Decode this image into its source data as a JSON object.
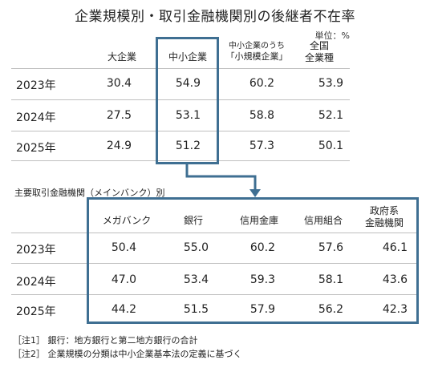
{
  "title": "企業規模別・取引金融機関別の後継者不在率",
  "unit": "単位：%",
  "section2_label": "主要取引金融機関（メインバンク）別",
  "years": [
    "2023年",
    "2024年",
    "2025年"
  ],
  "table1": {
    "columns": [
      {
        "label": "大企業"
      },
      {
        "label": "中小企業"
      },
      {
        "label_line1": "中小企業のうち",
        "label_line2": "「小規模企業」"
      },
      {
        "label_line1": "全国",
        "label_line2": "全業種"
      }
    ],
    "rows": [
      [
        "30.4",
        "54.9",
        "60.2",
        "53.9"
      ],
      [
        "27.5",
        "53.1",
        "58.8",
        "52.1"
      ],
      [
        "24.9",
        "51.2",
        "57.3",
        "50.1"
      ]
    ]
  },
  "table2": {
    "columns": [
      {
        "label": "メガバンク"
      },
      {
        "label": "銀行"
      },
      {
        "label": "信用金庫"
      },
      {
        "label": "信用組合"
      },
      {
        "label_line1": "政府系",
        "label_line2": "金融機関"
      }
    ],
    "rows": [
      [
        "50.4",
        "55.0",
        "60.2",
        "57.6",
        "46.1"
      ],
      [
        "47.0",
        "53.4",
        "59.3",
        "58.1",
        "43.6"
      ],
      [
        "44.2",
        "51.5",
        "57.9",
        "56.2",
        "42.3"
      ]
    ]
  },
  "notes": [
    "［注1］ 銀行：地方銀行と第二地方銀行の合計",
    "［注2］ 企業規模の分類は中小企業基本法の定義に基づく"
  ],
  "colors": {
    "highlight": "#3f6f92",
    "rule": "#bfbfbf"
  },
  "chart_data": [
    {
      "type": "table",
      "title": "企業規模別・取引金融機関別の後継者不在率",
      "unit": "%",
      "categories": [
        "2023年",
        "2024年",
        "2025年"
      ],
      "series": [
        {
          "name": "大企業",
          "values": [
            30.4,
            27.5,
            24.9
          ]
        },
        {
          "name": "中小企業",
          "values": [
            54.9,
            53.1,
            51.2
          ]
        },
        {
          "name": "中小企業のうち「小規模企業」",
          "values": [
            60.2,
            58.8,
            57.3
          ]
        },
        {
          "name": "全国全業種",
          "values": [
            53.9,
            52.1,
            50.1
          ]
        }
      ]
    },
    {
      "type": "table",
      "title": "主要取引金融機関（メインバンク）別",
      "unit": "%",
      "categories": [
        "2023年",
        "2024年",
        "2025年"
      ],
      "series": [
        {
          "name": "メガバンク",
          "values": [
            50.4,
            47.0,
            44.2
          ]
        },
        {
          "name": "銀行",
          "values": [
            55.0,
            53.4,
            51.5
          ]
        },
        {
          "name": "信用金庫",
          "values": [
            60.2,
            59.3,
            57.9
          ]
        },
        {
          "name": "信用組合",
          "values": [
            57.6,
            58.1,
            56.2
          ]
        },
        {
          "name": "政府系金融機関",
          "values": [
            46.1,
            43.6,
            42.3
          ]
        }
      ]
    }
  ]
}
